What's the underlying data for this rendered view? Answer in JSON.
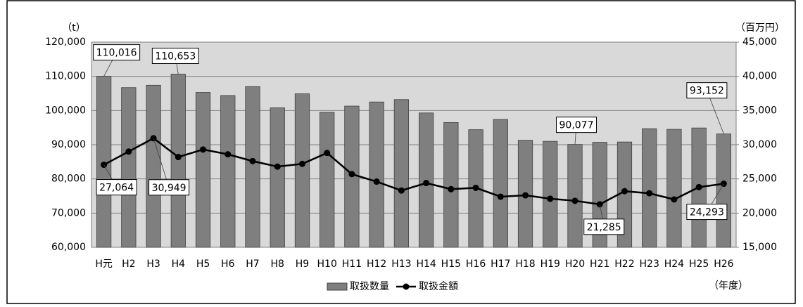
{
  "chart_data": {
    "type": "bar-line",
    "y_unit": "（t）",
    "y2_unit": "（百万円）",
    "x_unit": "（年度）",
    "categories": [
      "H元",
      "H2",
      "H3",
      "H4",
      "H5",
      "H6",
      "H7",
      "H8",
      "H9",
      "H10",
      "H11",
      "H12",
      "H13",
      "H14",
      "H15",
      "H16",
      "H17",
      "H18",
      "H19",
      "H20",
      "H21",
      "H22",
      "H23",
      "H24",
      "H25",
      "H26"
    ],
    "series": [
      {
        "name": "取扱数量",
        "type": "bar",
        "color": "#7f7f7f",
        "values": [
          110016,
          106700,
          107400,
          110653,
          105300,
          104400,
          107000,
          100800,
          104900,
          99500,
          101300,
          102500,
          103200,
          99300,
          96500,
          94400,
          97400,
          91300,
          91000,
          90077,
          90700,
          90800,
          94700,
          94500,
          94900,
          93152
        ],
        "value_labels": [
          "110,016",
          null,
          null,
          "110,653",
          null,
          null,
          null,
          null,
          null,
          null,
          null,
          null,
          null,
          null,
          null,
          null,
          null,
          null,
          null,
          "90,077",
          null,
          null,
          null,
          null,
          null,
          "93,152"
        ]
      },
      {
        "name": "取扱金額",
        "type": "line",
        "axis": "y2",
        "color": "#000000",
        "values": [
          27064,
          29000,
          30949,
          28200,
          29300,
          28600,
          27600,
          26800,
          27200,
          28800,
          25700,
          24600,
          23300,
          24400,
          23500,
          23700,
          22400,
          22600,
          22100,
          21800,
          21285,
          23200,
          22900,
          22000,
          23800,
          24293
        ],
        "value_labels": [
          "27,064",
          null,
          "30,949",
          null,
          null,
          null,
          null,
          null,
          null,
          null,
          null,
          null,
          null,
          null,
          null,
          null,
          null,
          null,
          null,
          null,
          "21,285",
          null,
          null,
          null,
          null,
          "24,293"
        ]
      }
    ],
    "ylim": [
      60000,
      120000
    ],
    "yticks": [
      {
        "value": 60000,
        "label": "60,000"
      },
      {
        "value": 70000,
        "label": "70,000"
      },
      {
        "value": 80000,
        "label": "80,000"
      },
      {
        "value": 90000,
        "label": "90,000"
      },
      {
        "value": 100000,
        "label": "100,000"
      },
      {
        "value": 110000,
        "label": "110,000"
      },
      {
        "value": 120000,
        "label": "120,000"
      }
    ],
    "y2lim": [
      15000,
      45000
    ],
    "y2ticks": [
      {
        "value": 15000,
        "label": "15,000"
      },
      {
        "value": 20000,
        "label": "20,000"
      },
      {
        "value": 25000,
        "label": "25,000"
      },
      {
        "value": 30000,
        "label": "30,000"
      },
      {
        "value": 35000,
        "label": "35,000"
      },
      {
        "value": 40000,
        "label": "40,000"
      },
      {
        "value": 45000,
        "label": "45,000"
      }
    ],
    "grid": true,
    "legend": "bottom"
  }
}
